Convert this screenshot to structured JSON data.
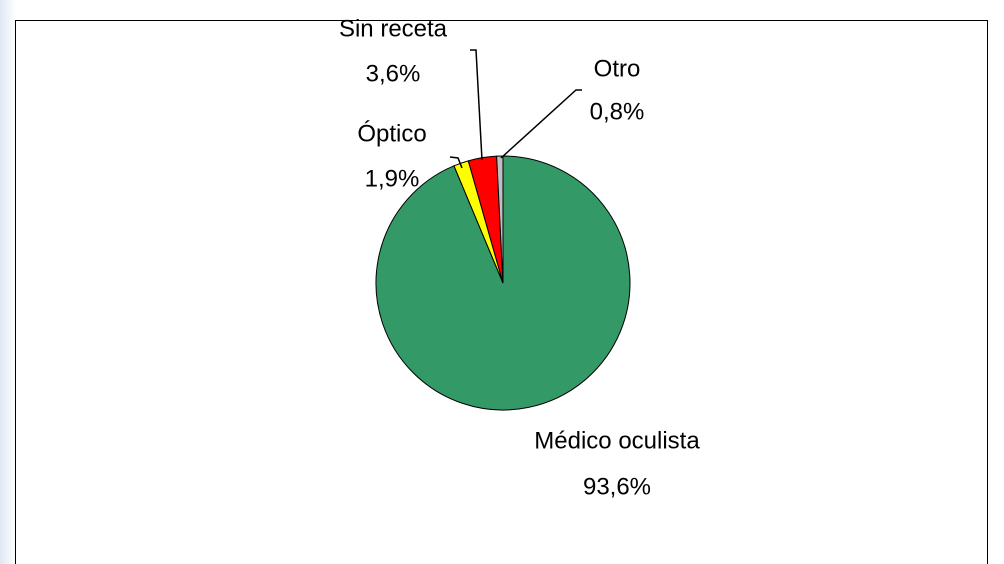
{
  "chart_data": {
    "type": "pie",
    "categories": [
      "Médico oculista",
      "Óptico",
      "Sin receta",
      "Otro"
    ],
    "values": [
      93.6,
      1.9,
      3.6,
      0.8
    ],
    "value_labels": [
      "93,6%",
      "1,9%",
      "3,6%",
      "0,8%"
    ],
    "colors": [
      "#339966",
      "#ffff00",
      "#ff0000",
      "#c0c0c0"
    ]
  }
}
